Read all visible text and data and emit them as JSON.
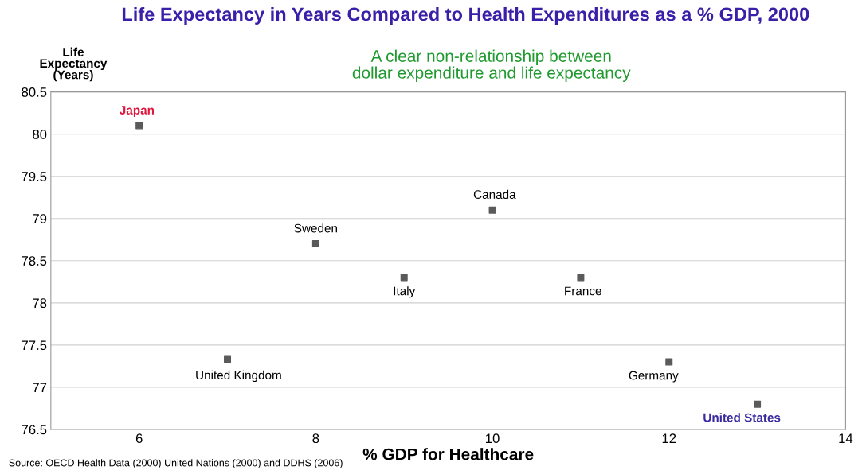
{
  "chart_data": {
    "type": "scatter",
    "title": "Life Expectancy in Years Compared to Health Expenditures as a % GDP, 2000",
    "subtitle": "A clear non-relationship between\ndollar expenditure and life expectancy",
    "xlabel": "% GDP for Healthcare",
    "ylabel": "Life\nExpectancy\n(Years)",
    "x": [
      6,
      7,
      8,
      9,
      10,
      11,
      12,
      13
    ],
    "series": [
      {
        "color": "#5a5a5a",
        "values": [
          80.1,
          77.33,
          78.7,
          78.3,
          79.1,
          78.3,
          77.3,
          76.8
        ]
      }
    ],
    "annotations": [
      {
        "text": "Japan",
        "x": 6,
        "y": 80.1
      },
      {
        "text": "United Kingdom",
        "x": 7,
        "y": 77.33
      },
      {
        "text": "Sweden",
        "x": 8,
        "y": 78.7
      },
      {
        "text": "Italy",
        "x": 9,
        "y": 78.3
      },
      {
        "text": "Canada",
        "x": 10,
        "y": 79.1
      },
      {
        "text": "France",
        "x": 11,
        "y": 78.3
      },
      {
        "text": "Germany",
        "x": 12,
        "y": 77.3
      },
      {
        "text": "United States",
        "x": 13,
        "y": 76.8
      },
      "Source: OECD Health Data (2000) United Nations (2000) and DDHS (2006)"
    ],
    "xlim": [
      5,
      14
    ],
    "xticks": [
      6,
      8,
      10,
      12,
      14
    ],
    "ylim": [
      76.5,
      80.5
    ],
    "yticks": [
      76.5,
      77,
      77.5,
      78,
      78.5,
      79,
      79.5,
      80,
      80.5
    ],
    "grid": "y",
    "marker": "square",
    "legend": false
  }
}
